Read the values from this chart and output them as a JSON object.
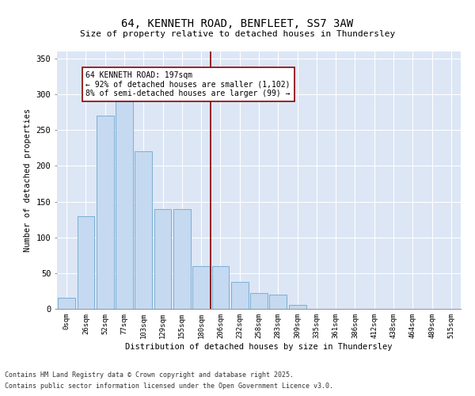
{
  "title1": "64, KENNETH ROAD, BENFLEET, SS7 3AW",
  "title2": "Size of property relative to detached houses in Thundersley",
  "xlabel": "Distribution of detached houses by size in Thundersley",
  "ylabel": "Number of detached properties",
  "bar_color": "#c5d9f0",
  "bar_edge_color": "#7bafd4",
  "line_color": "#8b0000",
  "annotation_box_color": "#8b0000",
  "background_color": "#dce6f5",
  "bins": [
    "0sqm",
    "26sqm",
    "52sqm",
    "77sqm",
    "103sqm",
    "129sqm",
    "155sqm",
    "180sqm",
    "206sqm",
    "232sqm",
    "258sqm",
    "283sqm",
    "309sqm",
    "335sqm",
    "361sqm",
    "386sqm",
    "412sqm",
    "438sqm",
    "464sqm",
    "489sqm",
    "515sqm"
  ],
  "values": [
    15,
    130,
    270,
    290,
    220,
    140,
    140,
    60,
    60,
    38,
    22,
    20,
    5,
    0,
    0,
    0,
    0,
    0,
    0,
    0,
    0
  ],
  "vline_x": 7.5,
  "annotation_line1": "64 KENNETH ROAD: 197sqm",
  "annotation_line2": "← 92% of detached houses are smaller (1,102)",
  "annotation_line3": "8% of semi-detached houses are larger (99) →",
  "footnote1": "Contains HM Land Registry data © Crown copyright and database right 2025.",
  "footnote2": "Contains public sector information licensed under the Open Government Licence v3.0.",
  "ylim": [
    0,
    360
  ],
  "yticks": [
    0,
    50,
    100,
    150,
    200,
    250,
    300,
    350
  ]
}
